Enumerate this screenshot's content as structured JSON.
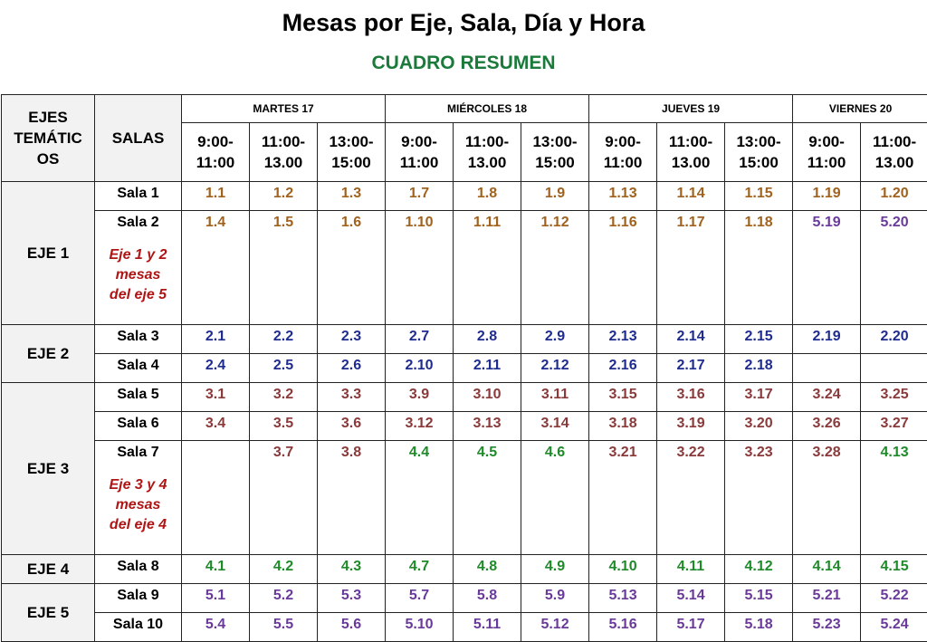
{
  "title": "Mesas por Eje, Sala, Día y Hora",
  "subtitle": "CUADRO RESUMEN",
  "header": {
    "ejes": "EJES TEMÁTICOS",
    "ejes_lines": [
      "EJES",
      "TEMÁTIC",
      "OS"
    ],
    "salas": "SALAS",
    "days": [
      "MARTES 17",
      "MIÉRCOLES 18",
      "JUEVES 19",
      "VIERNES 20"
    ],
    "times": [
      [
        "9:00-",
        "11:00"
      ],
      [
        "11:00-",
        "13.00"
      ],
      [
        "13:00-",
        "15:00"
      ],
      [
        "9:00-",
        "11:00"
      ],
      [
        "11:00-",
        "13.00"
      ],
      [
        "13:00-",
        "15:00"
      ],
      [
        "9:00-",
        "11:00"
      ],
      [
        "11:00-",
        "13.00"
      ],
      [
        "13:00-",
        "15:00"
      ],
      [
        "9:00-",
        "11:00"
      ],
      [
        "11:00-",
        "13.00"
      ]
    ]
  },
  "colors": {
    "brown": "#a0621e",
    "blue": "#1f2c8f",
    "red": "#8a3a3a",
    "green": "#1f8a2a",
    "purple": "#6a3a9a",
    "note": "#b01515"
  },
  "ejes": [
    {
      "label": "EJE 1",
      "salas": [
        {
          "name": "Sala 1",
          "cells": [
            "1.1",
            "1.2",
            "1.3",
            "1.7",
            "1.8",
            "1.9",
            "1.13",
            "1.14",
            "1.15",
            "1.19",
            "1.20"
          ]
        },
        {
          "name": "Sala 2",
          "cells": [
            "1.4",
            "1.5",
            "1.6",
            "1.10",
            "1.11",
            "1.12",
            "1.16",
            "1.17",
            "1.18",
            "5.19",
            "5.20"
          ],
          "note": [
            "Eje 1 y 2",
            "mesas",
            "del eje 5"
          ]
        }
      ]
    },
    {
      "label": "EJE 2",
      "salas": [
        {
          "name": "Sala 3",
          "cells": [
            "2.1",
            "2.2",
            "2.3",
            "2.7",
            "2.8",
            "2.9",
            "2.13",
            "2.14",
            "2.15",
            "2.19",
            "2.20"
          ]
        },
        {
          "name": "Sala 4",
          "cells": [
            "2.4",
            "2.5",
            "2.6",
            "2.10",
            "2.11",
            "2.12",
            "2.16",
            "2.17",
            "2.18",
            "",
            ""
          ]
        }
      ]
    },
    {
      "label": "EJE 3",
      "salas": [
        {
          "name": "Sala 5",
          "cells": [
            "3.1",
            "3.2",
            "3.3",
            "3.9",
            "3.10",
            "3.11",
            "3.15",
            "3.16",
            "3.17",
            "3.24",
            "3.25"
          ]
        },
        {
          "name": "Sala 6",
          "cells": [
            "3.4",
            "3.5",
            "3.6",
            "3.12",
            "3.13",
            "3.14",
            "3.18",
            "3.19",
            "3.20",
            "3.26",
            "3.27"
          ]
        },
        {
          "name": "Sala 7",
          "cells": [
            "",
            "3.7",
            "3.8",
            "4.4",
            "4.5",
            "4.6",
            "3.21",
            "3.22",
            "3.23",
            "3.28",
            "4.13"
          ],
          "note": [
            "Eje 3 y 4",
            "mesas",
            "del eje 4"
          ]
        }
      ]
    },
    {
      "label": "EJE 4",
      "salas": [
        {
          "name": "Sala 8",
          "cells": [
            "4.1",
            "4.2",
            "4.3",
            "4.7",
            "4.8",
            "4.9",
            "4.10",
            "4.11",
            "4.12",
            "4.14",
            "4.15"
          ]
        }
      ]
    },
    {
      "label": "EJE 5",
      "salas": [
        {
          "name": "Sala 9",
          "cells": [
            "5.1",
            "5.2",
            "5.3",
            "5.7",
            "5.8",
            "5.9",
            "5.13",
            "5.14",
            "5.15",
            "5.21",
            "5.22"
          ]
        },
        {
          "name": "Sala 10",
          "cells": [
            "5.4",
            "5.5",
            "5.6",
            "5.10",
            "5.11",
            "5.12",
            "5.16",
            "5.17",
            "5.18",
            "5.23",
            "5.24"
          ]
        }
      ]
    }
  ]
}
